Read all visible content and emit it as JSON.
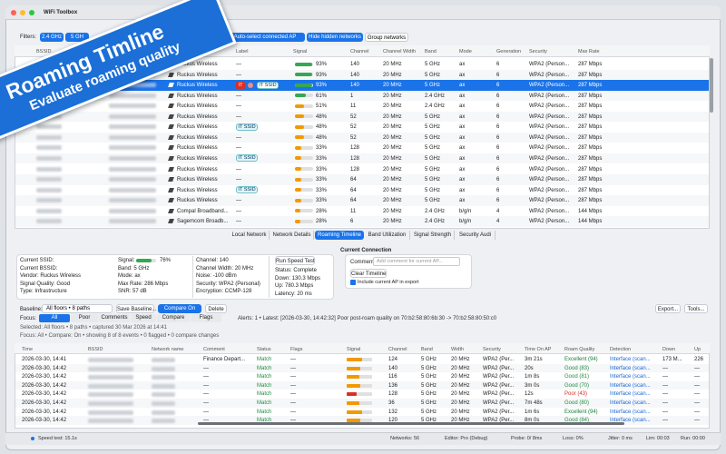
{
  "window": {
    "title": "WiFi Toolbox"
  },
  "banner": {
    "title": "Roaming Timline",
    "subtitle": "Evaluate roaming quality"
  },
  "filters": {
    "label": "Filters:",
    "buttons": [
      "2.4 GHz",
      "5 GH"
    ],
    "toggles": [
      "Auto-select connected AP",
      "Hide hidden networks",
      "Group networks"
    ]
  },
  "networks": {
    "columns": [
      "BSSID",
      "Label",
      "Signal",
      "Channel",
      "Channel Width",
      "Band",
      "Mode",
      "Generation",
      "Security",
      "Max Rate"
    ],
    "rows": [
      {
        "vendor": "Ruckus Wireless",
        "label": "—",
        "signal": 93,
        "signal_label": "93%",
        "channel": 140,
        "width": "20 MHz",
        "band": "5 GHz",
        "mode": "ax",
        "generation": 6,
        "security": "WPA2 (Person...",
        "max_rate": "287 Mbps"
      },
      {
        "vendor": "Ruckus Wireless",
        "label": "—",
        "signal": 93,
        "signal_label": "93%",
        "channel": 140,
        "width": "20 MHz",
        "band": "5 GHz",
        "mode": "ax",
        "generation": 6,
        "security": "WPA2 (Person...",
        "max_rate": "287 Mbps"
      },
      {
        "vendor": "Ruckus Wireless",
        "badge": "IT",
        "label": "IT SSID",
        "signal": 93,
        "signal_label": "93%",
        "channel": 140,
        "width": "20 MHz",
        "band": "5 GHz",
        "mode": "ax",
        "generation": 6,
        "security": "WPA2 (Person...",
        "max_rate": "287 Mbps"
      },
      {
        "vendor": "Ruckus Wireless",
        "label": "—",
        "signal": 61,
        "signal_label": "61%",
        "channel": 1,
        "width": "20 MHz",
        "band": "2.4 GHz",
        "mode": "ax",
        "generation": 6,
        "security": "WPA2 (Person...",
        "max_rate": "287 Mbps"
      },
      {
        "vendor": "Ruckus Wireless",
        "label": "—",
        "signal": 51,
        "signal_label": "51%",
        "channel": 11,
        "width": "20 MHz",
        "band": "2.4 GHz",
        "mode": "ax",
        "generation": 6,
        "security": "WPA2 (Person...",
        "max_rate": "287 Mbps"
      },
      {
        "vendor": "Ruckus Wireless",
        "label": "—",
        "signal": 48,
        "signal_label": "48%",
        "channel": 52,
        "width": "20 MHz",
        "band": "5 GHz",
        "mode": "ax",
        "generation": 6,
        "security": "WPA2 (Person...",
        "max_rate": "287 Mbps"
      },
      {
        "vendor": "Ruckus Wireless",
        "label": "IT SSID",
        "signal": 48,
        "signal_label": "48%",
        "channel": 52,
        "width": "20 MHz",
        "band": "5 GHz",
        "mode": "ax",
        "generation": 6,
        "security": "WPA2 (Person...",
        "max_rate": "287 Mbps"
      },
      {
        "vendor": "Ruckus Wireless",
        "label": "—",
        "signal": 48,
        "signal_label": "48%",
        "channel": 52,
        "width": "20 MHz",
        "band": "5 GHz",
        "mode": "ax",
        "generation": 6,
        "security": "WPA2 (Person...",
        "max_rate": "287 Mbps"
      },
      {
        "vendor": "Ruckus Wireless",
        "label": "—",
        "signal": 33,
        "signal_label": "33%",
        "channel": 128,
        "width": "20 MHz",
        "band": "5 GHz",
        "mode": "ax",
        "generation": 6,
        "security": "WPA2 (Person...",
        "max_rate": "287 Mbps"
      },
      {
        "vendor": "Ruckus Wireless",
        "label": "IT SSID",
        "signal": 33,
        "signal_label": "33%",
        "channel": 128,
        "width": "20 MHz",
        "band": "5 GHz",
        "mode": "ax",
        "generation": 6,
        "security": "WPA2 (Person...",
        "max_rate": "287 Mbps"
      },
      {
        "vendor": "Ruckus Wireless",
        "label": "—",
        "signal": 33,
        "signal_label": "33%",
        "channel": 128,
        "width": "20 MHz",
        "band": "5 GHz",
        "mode": "ax",
        "generation": 6,
        "security": "WPA2 (Person...",
        "max_rate": "287 Mbps"
      },
      {
        "vendor": "Ruckus Wireless",
        "label": "—",
        "signal": 33,
        "signal_label": "33%",
        "channel": 64,
        "width": "20 MHz",
        "band": "5 GHz",
        "mode": "ax",
        "generation": 6,
        "security": "WPA2 (Person...",
        "max_rate": "287 Mbps"
      },
      {
        "vendor": "Ruckus Wireless",
        "label": "IT SSID",
        "signal": 33,
        "signal_label": "33%",
        "channel": 64,
        "width": "20 MHz",
        "band": "5 GHz",
        "mode": "ax",
        "generation": 6,
        "security": "WPA2 (Person...",
        "max_rate": "287 Mbps"
      },
      {
        "vendor": "Ruckus Wireless",
        "label": "—",
        "signal": 33,
        "signal_label": "33%",
        "channel": 64,
        "width": "20 MHz",
        "band": "5 GHz",
        "mode": "ax",
        "generation": 6,
        "security": "WPA2 (Person...",
        "max_rate": "287 Mbps"
      },
      {
        "vendor": "Compal Broadband...",
        "label": "—",
        "signal": 28,
        "signal_label": "28%",
        "channel": 11,
        "width": "20 MHz",
        "band": "2.4 GHz",
        "mode": "b/g/n",
        "generation": 4,
        "security": "WPA2 (Person...",
        "max_rate": "144 Mbps"
      },
      {
        "vendor": "Sagemcom Broadb...",
        "label": "—",
        "signal": 28,
        "signal_label": "28%",
        "channel": 6,
        "width": "20 MHz",
        "band": "2.4 GHz",
        "mode": "b/g/n",
        "generation": 4,
        "security": "WPA2 (Person...",
        "max_rate": "144 Mbps"
      }
    ]
  },
  "tabs": {
    "items": [
      "Local Network",
      "Network Details",
      "Roaming Timeline",
      "Band Utilization",
      "Signal Strength",
      "Security Audi"
    ],
    "active": 2
  },
  "details": {
    "col1": [
      "Current SSID:",
      "Current BSSID:",
      "Vendor: Ruckus Wireless",
      "Signal Quality: Good",
      "Type: Infrastructure"
    ],
    "signal_title": "Signal:",
    "signal": 76,
    "signal_label": "76%",
    "col2": [
      "Band: 5 GHz",
      "Mode: ax",
      "Max Rate: 286 Mbps",
      "SNR: 57 dB"
    ],
    "col3": [
      "Channel: 140",
      "Channel Width: 20 MHz",
      "Noise: -100 dBm",
      "Security: WPA2 (Personal)",
      "Encryption: CCMP-128"
    ],
    "speed_button": "Run Speed Test",
    "speed": [
      "Status: Complete",
      "Down: 130.3 Mbps",
      "Up: 780.3 Mbps",
      "Latency: 20 ms"
    ]
  },
  "connection": {
    "title": "Current Connection",
    "comment_label": "Comment:",
    "comment_placeholder": "Add comment for current AP...",
    "clear_button": "Clear Timeline",
    "include": "Include current AP in export"
  },
  "toolbar": {
    "baseline_label": "Baseline:",
    "baseline": "All floors • 8 paths",
    "save": "Save Baseline...",
    "compare": "Compare On",
    "delete": "Delete",
    "export": "Export...",
    "tools": "Tools..."
  },
  "focus": {
    "label": "Focus:",
    "buttons": [
      "All",
      "Poor",
      "Comments",
      "Speed",
      "Compare",
      "Flags"
    ],
    "active": 0,
    "alert": "Alerts: 1 • Latest: [2026-03-30, 14:42:32] Poor post-roam quality on 70:b2:58:80:6b:30 -> 70:b2:58:80:50:c0",
    "selected": "Selected: All floors • 8 paths • captured 30 Mar 2026 at 14:41",
    "summary": "Focus: All • Compare: On • showing 8 of 8 events • 0 flagged • 0 compare changes"
  },
  "events": {
    "columns": [
      "Time",
      "BSSID",
      "Network name",
      "Comment",
      "Status",
      "Flags",
      "Signal",
      "Channel",
      "Band",
      "Width",
      "Security",
      "Time On AP",
      "Roam Quality",
      "Detection",
      "Down",
      "Up"
    ],
    "rows": [
      {
        "time": "2026-03-30, 14:41",
        "comment": "Finance Depart...",
        "status": "Match",
        "flags": "—",
        "signal": 60,
        "channel": 124,
        "band": "5 GHz",
        "width": "20 MHz",
        "security": "WPA2 (Per...",
        "time_on_ap": "3m 21s",
        "quality": "Excellent (94)",
        "detection": "Interface (scan...",
        "down": "173 M...",
        "up": "226"
      },
      {
        "time": "2026-03-30, 14:42",
        "comment": "—",
        "status": "Match",
        "flags": "—",
        "signal": 55,
        "channel": 140,
        "band": "5 GHz",
        "width": "20 MHz",
        "security": "WPA2 (Per...",
        "time_on_ap": "20s",
        "quality": "Good (83)",
        "detection": "Interface (scan...",
        "down": "—",
        "up": "—"
      },
      {
        "time": "2026-03-30, 14:42",
        "comment": "—",
        "status": "Match",
        "flags": "—",
        "signal": 50,
        "channel": 116,
        "band": "5 GHz",
        "width": "20 MHz",
        "security": "WPA2 (Per...",
        "time_on_ap": "1m 8s",
        "quality": "Good (81)",
        "detection": "Interface (scan...",
        "down": "—",
        "up": "—"
      },
      {
        "time": "2026-03-30, 14:42",
        "comment": "—",
        "status": "Match",
        "flags": "—",
        "signal": 55,
        "channel": 136,
        "band": "5 GHz",
        "width": "20 MHz",
        "security": "WPA2 (Per...",
        "time_on_ap": "3m 0s",
        "quality": "Good (70)",
        "detection": "Interface (scan...",
        "down": "—",
        "up": "—"
      },
      {
        "time": "2026-03-30, 14:42",
        "comment": "—",
        "status": "Match",
        "flags": "—",
        "signal": 40,
        "channel": 128,
        "band": "5 GHz",
        "width": "20 MHz",
        "security": "WPA2 (Per...",
        "time_on_ap": "12s",
        "quality": "Poor (43)",
        "detection": "Interface (scan...",
        "down": "—",
        "up": "—"
      },
      {
        "time": "2026-03-30, 14:42",
        "comment": "—",
        "status": "Match",
        "flags": "—",
        "signal": 50,
        "channel": 36,
        "band": "5 GHz",
        "width": "20 MHz",
        "security": "WPA2 (Per...",
        "time_on_ap": "7m 48s",
        "quality": "Good (80)",
        "detection": "Interface (scan...",
        "down": "—",
        "up": "—"
      },
      {
        "time": "2026-03-30, 14:42",
        "comment": "—",
        "status": "Match",
        "flags": "—",
        "signal": 60,
        "channel": 132,
        "band": "5 GHz",
        "width": "20 MHz",
        "security": "WPA2 (Per...",
        "time_on_ap": "1m 6s",
        "quality": "Excellent (94)",
        "detection": "Interface (scan...",
        "down": "—",
        "up": "—"
      },
      {
        "time": "2026-03-30, 14:42",
        "comment": "—",
        "status": "Match",
        "flags": "—",
        "signal": 55,
        "channel": 120,
        "band": "5 GHz",
        "width": "20 MHz",
        "security": "WPA2 (Per...",
        "time_on_ap": "8m 0s",
        "quality": "Good (84)",
        "detection": "Interface (scan...",
        "down": "—",
        "up": "—"
      }
    ]
  },
  "status_bar": [
    "Speed test: 15.1s",
    "Networks: 56",
    "Editor: Pro (Debug)",
    "Probe: 0/ 8ms",
    "Loss: 0%",
    "Jitter: 0 ms",
    "Lim: 00:03",
    "Run: 00:00"
  ]
}
